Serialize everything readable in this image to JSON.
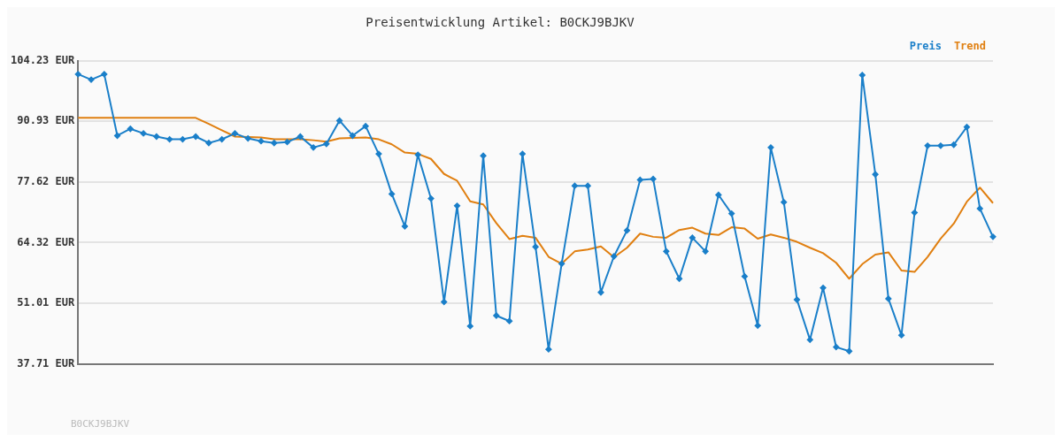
{
  "chart_data": {
    "type": "line",
    "title": "Preisentwicklung Artikel: B0CKJ9BJKV",
    "categories": [
      null,
      null,
      null,
      null,
      null,
      null,
      null,
      null,
      null,
      null,
      null,
      null,
      null,
      null,
      null,
      null,
      null,
      null,
      null,
      null,
      null,
      null,
      null,
      null,
      null,
      null,
      null,
      null,
      null,
      null,
      null,
      null,
      null,
      null,
      null,
      null,
      null,
      null,
      null,
      null,
      null,
      null,
      null,
      null,
      null,
      null,
      null,
      null,
      null,
      null,
      null,
      null,
      null,
      null,
      null,
      null,
      null,
      null,
      null,
      null,
      null,
      null,
      null,
      null,
      null,
      null,
      null,
      null,
      null,
      null,
      null
    ],
    "series": [
      {
        "name": "Preis",
        "color": "#1a7fc9",
        "marker": "diamond",
        "values": [
          101.3,
          100.1,
          101.3,
          87.8,
          89.3,
          88.3,
          87.6,
          87.0,
          87.0,
          87.6,
          86.2,
          87.0,
          88.3,
          87.2,
          86.6,
          86.2,
          86.4,
          87.6,
          85.2,
          86.0,
          91.1,
          87.8,
          89.9,
          83.8,
          75.0,
          67.9,
          83.6,
          74.0,
          51.3,
          72.4,
          46.0,
          83.4,
          48.3,
          47.1,
          83.8,
          63.4,
          40.9,
          59.7,
          76.8,
          76.8,
          53.4,
          61.3,
          67.0,
          78.1,
          78.3,
          62.4,
          56.4,
          65.4,
          62.4,
          74.8,
          70.7,
          56.9,
          46.1,
          85.2,
          73.2,
          51.8,
          43.0,
          54.4,
          41.4,
          40.5,
          101.1,
          79.3,
          52.0,
          44.0,
          70.9,
          85.6,
          85.6,
          85.8,
          89.7,
          71.8,
          65.6
        ]
      },
      {
        "name": "Trend",
        "color": "#e07f10",
        "marker": "none",
        "values": [
          91.7,
          91.7,
          91.7,
          91.7,
          91.7,
          91.7,
          91.7,
          91.7,
          91.7,
          91.7,
          90.4,
          89.0,
          87.6,
          87.5,
          87.4,
          87.0,
          87.0,
          87.0,
          86.8,
          86.5,
          87.2,
          87.3,
          87.4,
          87.0,
          85.9,
          84.1,
          83.8,
          82.7,
          79.4,
          77.9,
          73.4,
          72.7,
          68.6,
          65.1,
          65.8,
          65.4,
          61.2,
          59.7,
          62.4,
          62.8,
          63.5,
          61.1,
          63.2,
          66.3,
          65.6,
          65.4,
          67.1,
          67.6,
          66.3,
          66.0,
          67.7,
          67.4,
          65.2,
          66.1,
          65.4,
          64.5,
          63.2,
          62.0,
          59.9,
          56.4,
          59.6,
          61.7,
          62.2,
          58.2,
          57.9,
          61.2,
          65.2,
          68.5,
          73.3,
          76.4,
          73.0
        ]
      }
    ],
    "ylim": [
      37.71,
      104.23
    ],
    "yticks": [
      {
        "value": 37.71,
        "label": "37.71 EUR"
      },
      {
        "value": 51.01,
        "label": "51.01 EUR"
      },
      {
        "value": 64.32,
        "label": "64.32 EUR"
      },
      {
        "value": 77.62,
        "label": "77.62 EUR"
      },
      {
        "value": 90.93,
        "label": "90.93 EUR"
      },
      {
        "value": 104.23,
        "label": "104.23 EUR"
      }
    ],
    "grid": "y",
    "legend": "top right",
    "line_style": "solid",
    "annotations": [
      "B0CKJ9BJKV"
    ]
  }
}
